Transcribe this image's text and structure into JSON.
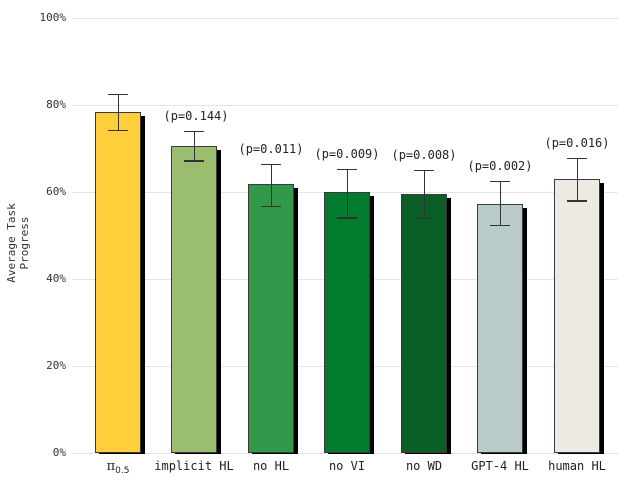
{
  "chart_data": {
    "type": "bar",
    "title": "",
    "xlabel": "",
    "ylabel": "Average Task Progress",
    "ylim": [
      0,
      100
    ],
    "yticks": [
      "0%",
      "20%",
      "40%",
      "60%",
      "80%",
      "100%"
    ],
    "grid": true,
    "legend": null,
    "categories": [
      "π0.5",
      "implicit HL",
      "no HL",
      "no VI",
      "no WD",
      "GPT-4 HL",
      "human HL"
    ],
    "values": [
      78.5,
      70.5,
      61.8,
      59.9,
      59.6,
      57.3,
      62.9
    ],
    "error_low": [
      74.3,
      67.3,
      56.8,
      54.2,
      54.0,
      52.4,
      58.1
    ],
    "error_high": [
      82.6,
      74.0,
      66.5,
      65.3,
      65.1,
      62.5,
      67.8
    ],
    "p_values": [
      "",
      "(p=0.144)",
      "(p=0.011)",
      "(p=0.009)",
      "(p=0.008)",
      "(p=0.002)",
      "(p=0.016)"
    ],
    "colors": [
      "#FFCE3A",
      "#9BBD70",
      "#33984A",
      "#027B2E",
      "#0A5F25",
      "#B8CACA",
      "#ECEAE2"
    ]
  }
}
